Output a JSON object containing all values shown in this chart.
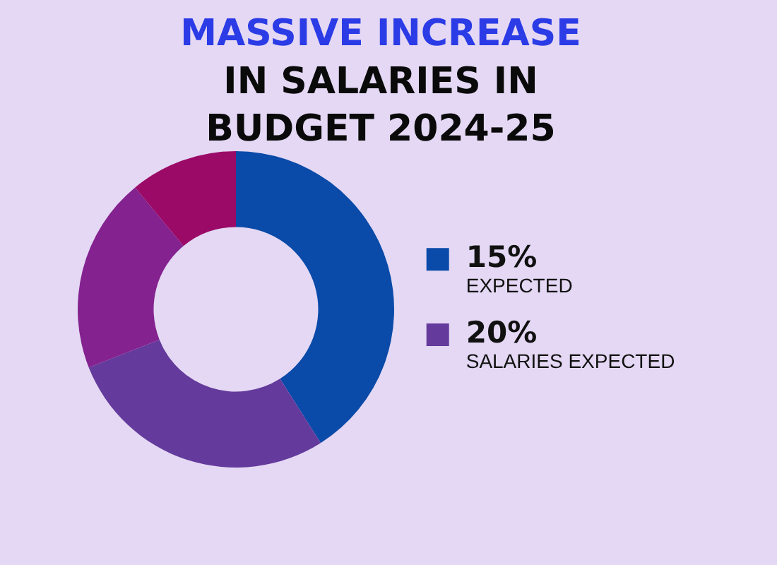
{
  "chart_data": {
    "type": "donut",
    "title": "MASSIVE INCREASE\nIN SALARIES IN\nBUDGET 2024-25",
    "categories": [
      "15%\nEXPECTED",
      "20%\nSALARIES EXPECTED",
      null,
      null
    ],
    "values": [
      41,
      28,
      20,
      11
    ],
    "colors": [
      "#0a4aa8",
      "#643a9c",
      "#842290",
      "#9a0a66"
    ],
    "legend": "right"
  }
}
